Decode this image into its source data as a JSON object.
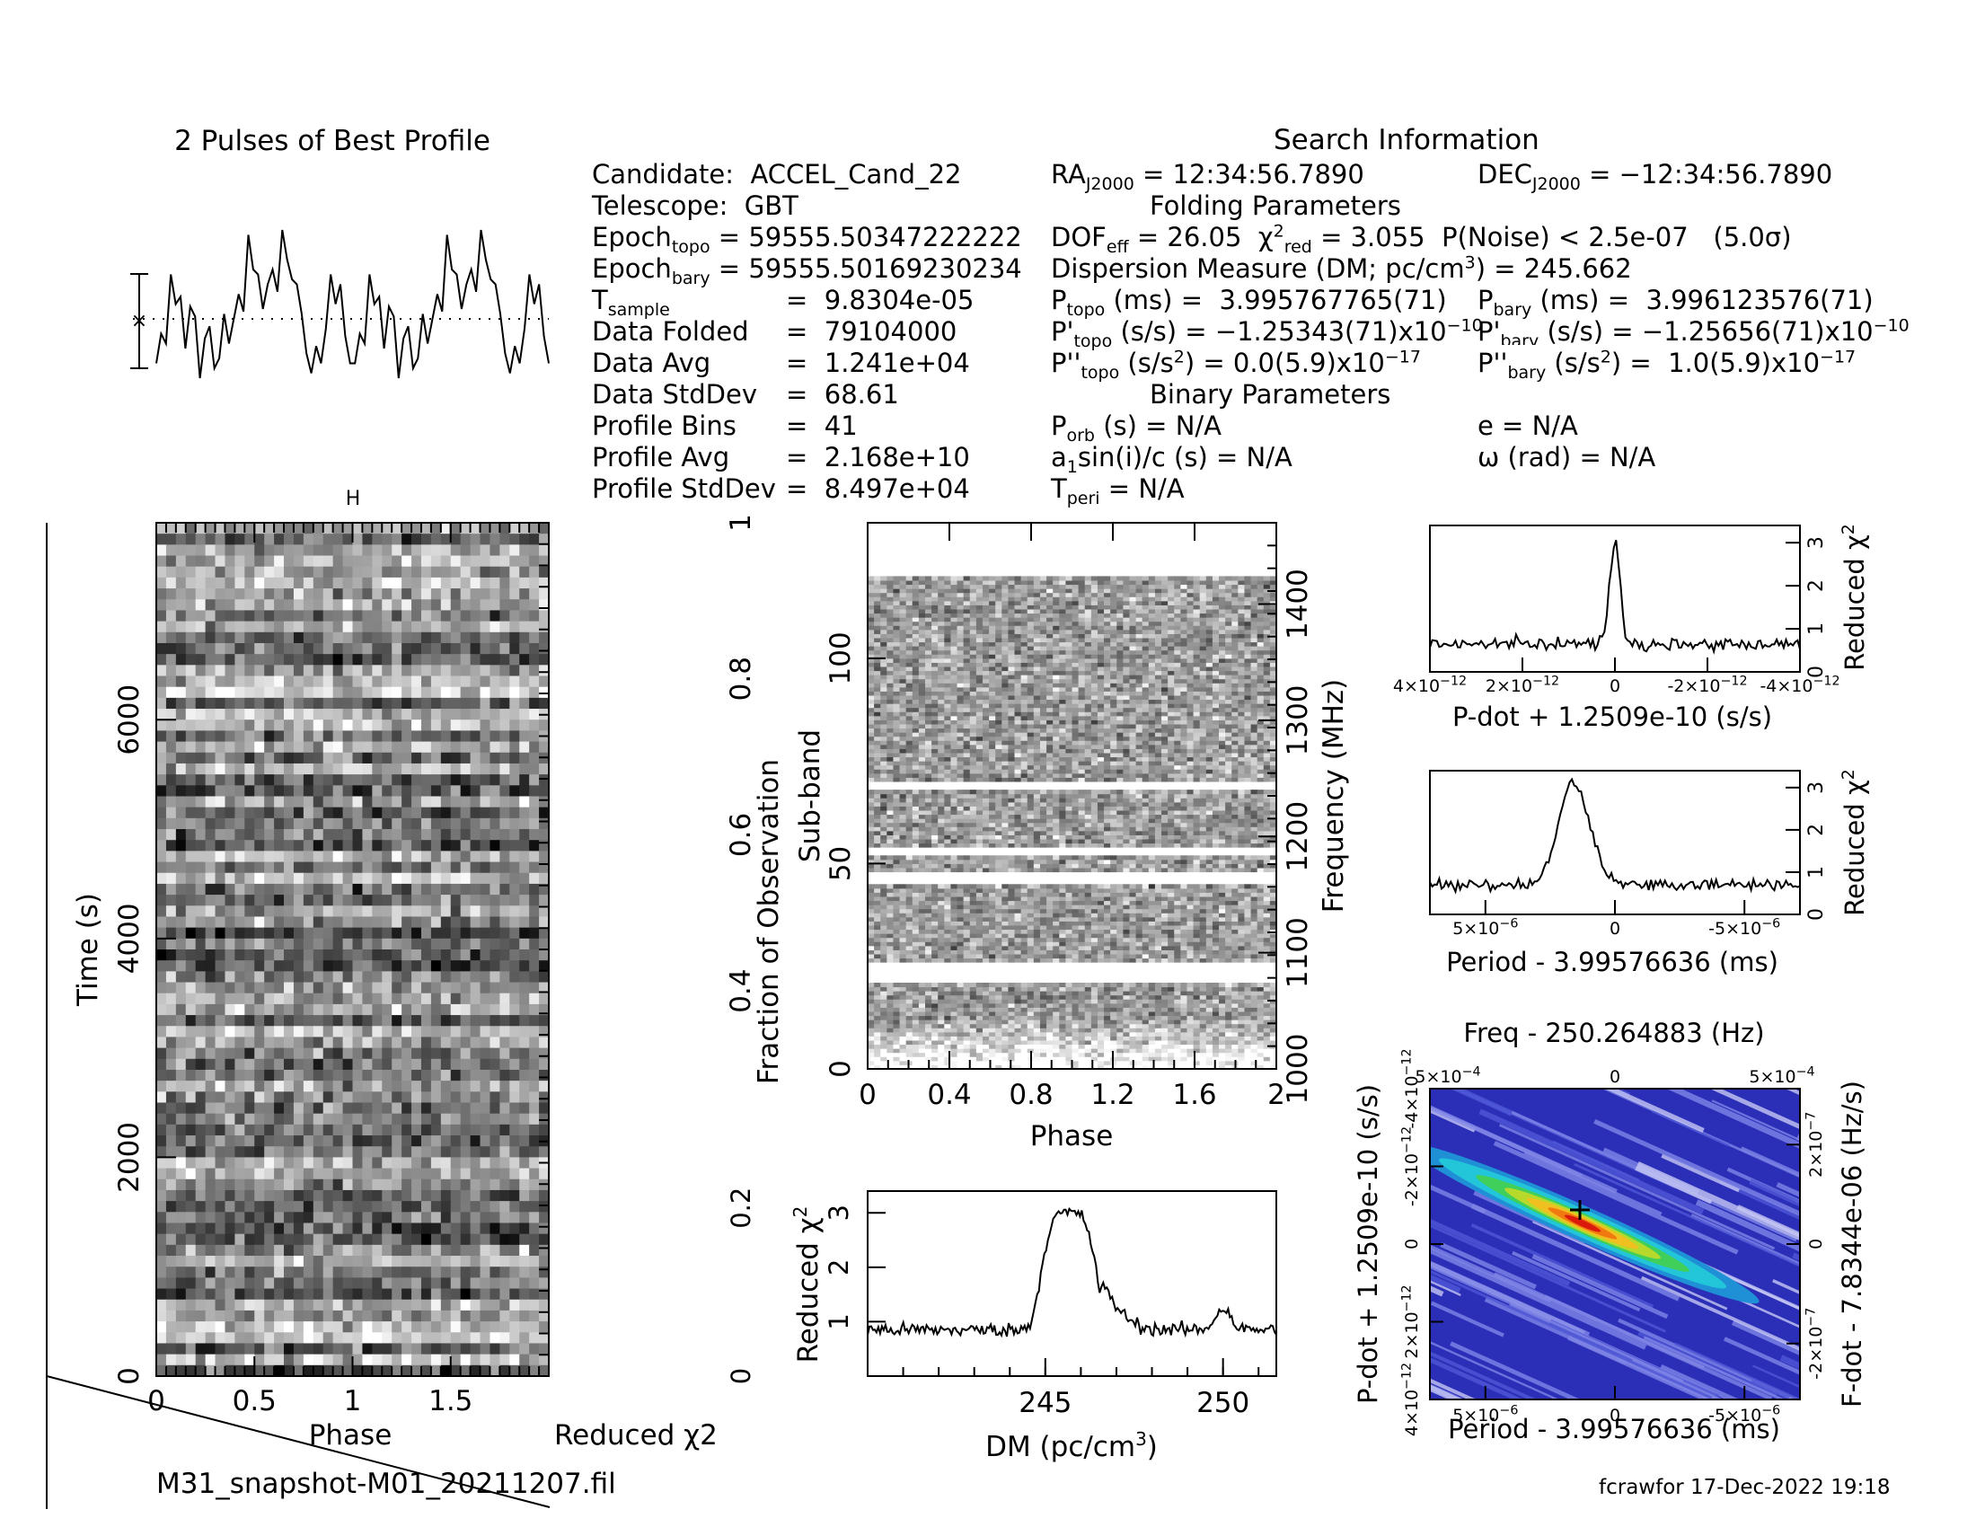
{
  "chart_data": [
    {
      "type": "line",
      "title": "2 Pulses of Best Profile",
      "x_range": [
        0,
        2
      ],
      "profile_bins": 41,
      "values": [
        -0.9,
        -0.3,
        -0.5,
        0.9,
        0.3,
        0.45,
        -0.6,
        0.25,
        0.05,
        -1.2,
        -0.4,
        -0.15,
        -1.0,
        -0.8,
        0.1,
        -0.5,
        0.0,
        0.5,
        0.15,
        1.7,
        1.0,
        0.9,
        0.2,
        0.7,
        1.0,
        0.55,
        1.8,
        1.2,
        0.8,
        0.7,
        0.1,
        -0.7,
        -1.1,
        -0.55,
        -0.9,
        -0.2,
        0.9,
        0.3,
        0.7,
        -0.35,
        -0.9
      ]
    },
    {
      "type": "heatmap",
      "xlabel": "Phase",
      "ylabel": "Time (s)",
      "x_ticks": [
        "0",
        "0.5",
        "1",
        "1.5"
      ],
      "y_ticks": [
        "0",
        "2000",
        "4000",
        "6000"
      ],
      "xlim": [
        0,
        2
      ],
      "ylim": [
        0,
        7800
      ],
      "colormap": "grayscale"
    },
    {
      "type": "line",
      "xlabel": "Reduced χ2",
      "note": "time-vs-reduced chi-square diagonal"
    },
    {
      "type": "heatmap",
      "xlabel": "Phase",
      "ylabel_left": "Sub-band",
      "ylabel_left2": "Fraction of Observation",
      "ylabel_right": "Frequency (MHz)",
      "x_ticks": [
        "0",
        "0.4",
        "0.8",
        "1.2",
        "1.6",
        "2"
      ],
      "y_ticks_subband": [
        "0",
        "50",
        "100"
      ],
      "y_ticks_fraction": [
        "0.4",
        "0.6",
        "0.8",
        "1"
      ],
      "y_ticks_freq": [
        "1000",
        "1100",
        "1200",
        "1300",
        "1400"
      ],
      "masked_subbands": [
        [
          21,
          26
        ],
        [
          45,
          48
        ],
        [
          52,
          54
        ],
        [
          68,
          70
        ],
        [
          120,
          128
        ]
      ],
      "colormap": "grayscale"
    },
    {
      "type": "line",
      "xlabel": "DM (pc/cm3)",
      "ylabel": "Reduced χ2",
      "x_ticks": [
        "245",
        "250"
      ],
      "y_ticks": [
        "1",
        "2",
        "3"
      ],
      "y_ticks_left": [
        "0",
        "0.2"
      ],
      "xlim": [
        240,
        251.5
      ],
      "ylim": [
        0,
        3.4
      ],
      "peak_x": 245.66,
      "peak_y": 3.0,
      "baseline": 0.85
    },
    {
      "type": "line",
      "xlabel": "P-dot + 1.2509e-10 (s/s)",
      "ylabel": "Reduced χ2",
      "x_ticks": [
        "4x10-12",
        "2x10-12",
        "0",
        "-2x10-12",
        "-4x10-12"
      ],
      "y_ticks": [
        "0",
        "1",
        "2",
        "3"
      ],
      "peak_y": 3.05,
      "baseline": 0.65
    },
    {
      "type": "line",
      "xlabel": "Period - 3.99576636 (ms)",
      "ylabel": "Reduced χ2",
      "x_ticks": [
        "5x10-6",
        "0",
        "-5x10-6"
      ],
      "y_ticks": [
        "0",
        "1",
        "2",
        "3"
      ],
      "peak_y": 3.05,
      "baseline": 0.7
    },
    {
      "type": "heatmap",
      "title": "Freq - 250.264883 (Hz)",
      "xlabel": "Period - 3.99576636 (ms)",
      "ylabel": "P-dot + 1.2509e-10 (s/s)",
      "ylabel_right": "F-dot - 7.8344e-06 (Hz/s)",
      "x_ticks": [
        "5x10-6",
        "0",
        "-5x10-6"
      ],
      "x_ticks_top": [
        "5x10-4",
        "0",
        "5x10-4"
      ],
      "y_ticks_left": [
        "4x10-12",
        "2x10-12",
        "0",
        "-2x10-12",
        "-4x10-12"
      ],
      "y_ticks_right": [
        "-2x10-7",
        "0",
        "2x10-7"
      ],
      "colormap": "jet-like"
    }
  ],
  "search_info": {
    "header": "Search Information",
    "candidate_label": "Candidate:",
    "candidate": "ACCEL_Cand_22",
    "telescope_label": "Telescope:",
    "telescope": "GBT",
    "epoch_topo": "59555.50347222222",
    "epoch_bary": "59555.50169230234",
    "t_sample": "9.8304e-05",
    "data_folded_label": "Data Folded",
    "data_folded": "79104000",
    "data_avg_label": "Data Avg",
    "data_avg": "1.241e+04",
    "data_stddev_label": "Data StdDev",
    "data_stddev": "68.61",
    "profile_bins_label": "Profile Bins",
    "profile_bins": "41",
    "profile_avg_label": "Profile Avg",
    "profile_avg": "2.168e+10",
    "profile_stddev_label": "Profile StdDev",
    "profile_stddev": "8.497e+04",
    "ra": "12:34:56.7890",
    "dec": "−12:34:56.7890",
    "folding_header": "Folding Parameters",
    "dof_eff": "26.05",
    "chi2_red": "3.055",
    "p_noise": "< 2.5e-07",
    "sigma": "(5.0σ)",
    "dm_label": "Dispersion Measure (DM; pc/cm",
    "dm": "245.662",
    "p_topo": "3.995767765(71)",
    "p_bary": "3.996123576(71)",
    "pd_topo": "−1.25343(71)x10",
    "pd_bary": "−1.25656(71)x10",
    "pdd_topo": "0.0(5.9)x10",
    "pdd_bary": "1.0(5.9)x10",
    "pdd_exp": "−17",
    "pd_exp": "−10",
    "binary_header": "Binary Parameters",
    "p_orb": "N/A",
    "asini": "N/A",
    "t_peri": "N/A",
    "ecc": "N/A",
    "omega": "N/A"
  },
  "footer": {
    "filename": "M31_snapshot-M01_20211207.fil",
    "user_date": "fcrawfor 17-Dec-2022 19:18"
  }
}
